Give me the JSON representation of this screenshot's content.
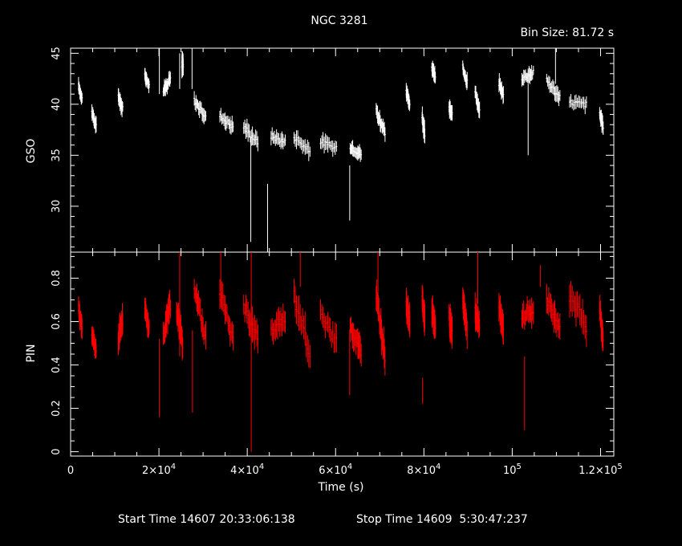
{
  "chart_data": {
    "type": "scatter",
    "title": "NGC 3281",
    "bin_size_label": "Bin Size: 81.72 s",
    "xlabel": "Time (s)",
    "xlim": [
      0,
      123000
    ],
    "x_ticks": [
      {
        "value": 0,
        "label": "0"
      },
      {
        "value": 20000,
        "label": "2×10",
        "exp": "4"
      },
      {
        "value": 40000,
        "label": "4×10",
        "exp": "4"
      },
      {
        "value": 60000,
        "label": "6×10",
        "exp": "4"
      },
      {
        "value": 80000,
        "label": "8×10",
        "exp": "4"
      },
      {
        "value": 100000,
        "label": "10",
        "exp": "5"
      },
      {
        "value": 120000,
        "label": "1.2×10",
        "exp": "5"
      }
    ],
    "panels": [
      {
        "name": "GSO",
        "ylabel": "GSO",
        "ylim": [
          25.5,
          45.5
        ],
        "y_ticks": [
          30,
          35,
          40,
          45
        ],
        "color": "#ffffff",
        "segments": [
          {
            "x0": 1800,
            "x1": 2600,
            "y0": 41.8,
            "y1": 40.6,
            "err": 0.6
          },
          {
            "x0": 4800,
            "x1": 5800,
            "y0": 39.2,
            "y1": 37.8,
            "err": 0.7
          },
          {
            "x0": 10800,
            "x1": 11800,
            "y0": 40.8,
            "y1": 39.5,
            "err": 0.7
          },
          {
            "x0": 16800,
            "x1": 17800,
            "y0": 42.9,
            "y1": 41.9,
            "err": 0.6
          },
          {
            "x0": 21000,
            "x1": 22600,
            "y0": 41.3,
            "y1": 42.6,
            "err": 0.7
          },
          {
            "x0": 25200,
            "x1": 25500,
            "y0": 44.0,
            "y1": 43.7,
            "err": 1.0
          },
          {
            "x0": 28000,
            "x1": 30600,
            "y0": 40.4,
            "y1": 38.7,
            "err": 0.7
          },
          {
            "x0": 33800,
            "x1": 36800,
            "y0": 38.9,
            "y1": 37.8,
            "err": 0.7
          },
          {
            "x0": 39200,
            "x1": 42400,
            "y0": 37.8,
            "y1": 36.3,
            "err": 0.8
          },
          {
            "x0": 45400,
            "x1": 48600,
            "y0": 36.9,
            "y1": 36.3,
            "err": 0.7
          },
          {
            "x0": 50600,
            "x1": 54200,
            "y0": 36.9,
            "y1": 35.3,
            "err": 0.8
          },
          {
            "x0": 56600,
            "x1": 60200,
            "y0": 36.4,
            "y1": 35.6,
            "err": 0.7
          },
          {
            "x0": 63300,
            "x1": 65800,
            "y0": 35.9,
            "y1": 35.1,
            "err": 0.7
          },
          {
            "x0": 69200,
            "x1": 71200,
            "y0": 39.4,
            "y1": 37.1,
            "err": 0.8
          },
          {
            "x0": 76000,
            "x1": 76800,
            "y0": 41.1,
            "y1": 40.1,
            "err": 0.7
          },
          {
            "x0": 79600,
            "x1": 80200,
            "y0": 38.7,
            "y1": 37.1,
            "err": 0.8
          },
          {
            "x0": 81800,
            "x1": 82600,
            "y0": 43.6,
            "y1": 42.6,
            "err": 0.7
          },
          {
            "x0": 85700,
            "x1": 86400,
            "y0": 39.6,
            "y1": 38.9,
            "err": 0.7
          },
          {
            "x0": 88800,
            "x1": 89800,
            "y0": 43.6,
            "y1": 42.2,
            "err": 0.7
          },
          {
            "x0": 91600,
            "x1": 92600,
            "y0": 41.3,
            "y1": 39.2,
            "err": 0.7
          },
          {
            "x0": 97000,
            "x1": 98000,
            "y0": 42.1,
            "y1": 40.9,
            "err": 0.7
          },
          {
            "x0": 102200,
            "x1": 104800,
            "y0": 42.6,
            "y1": 43.1,
            "err": 0.7
          },
          {
            "x0": 107800,
            "x1": 110800,
            "y0": 42.4,
            "y1": 40.6,
            "err": 0.7
          },
          {
            "x0": 113000,
            "x1": 116800,
            "y0": 40.2,
            "y1": 40.0,
            "err": 0.7
          },
          {
            "x0": 119800,
            "x1": 120600,
            "y0": 39.0,
            "y1": 37.8,
            "err": 0.7
          }
        ],
        "spikes": [
          {
            "x": 20100,
            "y0": 41.0,
            "y1": 45.5
          },
          {
            "x": 24700,
            "y0": 41.5,
            "y1": 45.0
          },
          {
            "x": 27500,
            "y0": 41.5,
            "y1": 45.5
          },
          {
            "x": 40800,
            "y0": 26.5,
            "y1": 36.8
          },
          {
            "x": 44600,
            "y0": 25.5,
            "y1": 32.2
          },
          {
            "x": 63200,
            "y0": 28.6,
            "y1": 34.0
          },
          {
            "x": 103600,
            "y0": 35.0,
            "y1": 43.5
          },
          {
            "x": 109800,
            "y0": 42.0,
            "y1": 45.5
          }
        ]
      },
      {
        "name": "PIN",
        "ylabel": "PIN",
        "ylim": [
          -0.02,
          0.92
        ],
        "y_ticks": [
          {
            "value": 0,
            "label": "0"
          },
          {
            "value": 0.2,
            "label": "0.2"
          },
          {
            "value": 0.4,
            "label": "0.4"
          },
          {
            "value": 0.6,
            "label": "0.6"
          },
          {
            "value": 0.8,
            "label": "0.8"
          }
        ],
        "color": "#ff0000",
        "segments": [
          {
            "x0": 1800,
            "x1": 2600,
            "y0": 0.66,
            "y1": 0.56,
            "err": 0.05
          },
          {
            "x0": 4800,
            "x1": 5800,
            "y0": 0.54,
            "y1": 0.46,
            "err": 0.05
          },
          {
            "x0": 10800,
            "x1": 11800,
            "y0": 0.52,
            "y1": 0.61,
            "err": 0.06
          },
          {
            "x0": 16800,
            "x1": 17800,
            "y0": 0.66,
            "y1": 0.56,
            "err": 0.05
          },
          {
            "x0": 21000,
            "x1": 22600,
            "y0": 0.54,
            "y1": 0.68,
            "err": 0.06
          },
          {
            "x0": 24000,
            "x1": 25400,
            "y0": 0.66,
            "y1": 0.5,
            "err": 0.06
          },
          {
            "x0": 28000,
            "x1": 30600,
            "y0": 0.76,
            "y1": 0.52,
            "err": 0.06
          },
          {
            "x0": 33800,
            "x1": 36800,
            "y0": 0.74,
            "y1": 0.52,
            "err": 0.06
          },
          {
            "x0": 39200,
            "x1": 42400,
            "y0": 0.68,
            "y1": 0.52,
            "err": 0.07
          },
          {
            "x0": 45400,
            "x1": 48600,
            "y0": 0.55,
            "y1": 0.62,
            "err": 0.06
          },
          {
            "x0": 50600,
            "x1": 54200,
            "y0": 0.72,
            "y1": 0.46,
            "err": 0.07
          },
          {
            "x0": 56600,
            "x1": 60200,
            "y0": 0.64,
            "y1": 0.5,
            "err": 0.06
          },
          {
            "x0": 63300,
            "x1": 65800,
            "y0": 0.58,
            "y1": 0.46,
            "err": 0.06
          },
          {
            "x0": 69200,
            "x1": 71200,
            "y0": 0.72,
            "y1": 0.44,
            "err": 0.07
          },
          {
            "x0": 76000,
            "x1": 76800,
            "y0": 0.68,
            "y1": 0.6,
            "err": 0.06
          },
          {
            "x0": 79600,
            "x1": 80200,
            "y0": 0.72,
            "y1": 0.6,
            "err": 0.06
          },
          {
            "x0": 81800,
            "x1": 82600,
            "y0": 0.66,
            "y1": 0.58,
            "err": 0.06
          },
          {
            "x0": 85700,
            "x1": 86400,
            "y0": 0.62,
            "y1": 0.54,
            "err": 0.06
          },
          {
            "x0": 88800,
            "x1": 89800,
            "y0": 0.7,
            "y1": 0.56,
            "err": 0.06
          },
          {
            "x0": 91600,
            "x1": 92600,
            "y0": 0.64,
            "y1": 0.58,
            "err": 0.06
          },
          {
            "x0": 97000,
            "x1": 98000,
            "y0": 0.68,
            "y1": 0.56,
            "err": 0.06
          },
          {
            "x0": 102200,
            "x1": 104800,
            "y0": 0.62,
            "y1": 0.66,
            "err": 0.06
          },
          {
            "x0": 107800,
            "x1": 110800,
            "y0": 0.7,
            "y1": 0.56,
            "err": 0.06
          },
          {
            "x0": 113000,
            "x1": 116800,
            "y0": 0.72,
            "y1": 0.58,
            "err": 0.07
          },
          {
            "x0": 119800,
            "x1": 120600,
            "y0": 0.66,
            "y1": 0.5,
            "err": 0.06
          }
        ],
        "spikes": [
          {
            "x": 20100,
            "y0": 0.16,
            "y1": 0.52
          },
          {
            "x": 24700,
            "y0": 0.44,
            "y1": 0.92
          },
          {
            "x": 27600,
            "y0": 0.18,
            "y1": 0.56
          },
          {
            "x": 34000,
            "y0": 0.74,
            "y1": 0.92
          },
          {
            "x": 40900,
            "y0": 0.0,
            "y1": 0.92
          },
          {
            "x": 52000,
            "y0": 0.76,
            "y1": 0.92
          },
          {
            "x": 63200,
            "y0": 0.26,
            "y1": 0.56
          },
          {
            "x": 69600,
            "y0": 0.7,
            "y1": 0.92
          },
          {
            "x": 79700,
            "y0": 0.22,
            "y1": 0.34
          },
          {
            "x": 92200,
            "y0": 0.68,
            "y1": 0.92
          },
          {
            "x": 102800,
            "y0": 0.1,
            "y1": 0.44
          },
          {
            "x": 106400,
            "y0": 0.76,
            "y1": 0.86
          }
        ]
      }
    ]
  },
  "footer": {
    "start_label": "Start Time 14607 20:33:06:138",
    "stop_label": "Stop Time 14609  5:30:47:237"
  }
}
